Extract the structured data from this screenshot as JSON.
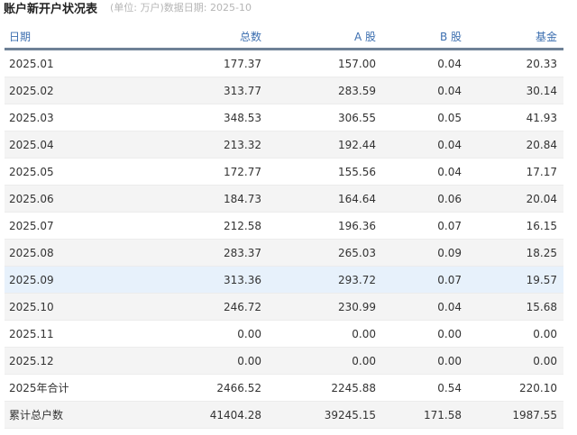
{
  "header": {
    "title": "账户新开户状况表",
    "subtitle": "(单位: 万户)数据日期:  2025-10"
  },
  "table": {
    "columns": [
      "日期",
      "总数",
      "A 股",
      "B 股",
      "基金"
    ],
    "rows": [
      [
        "2025.01",
        "177.37",
        "157.00",
        "0.04",
        "20.33"
      ],
      [
        "2025.02",
        "313.77",
        "283.59",
        "0.04",
        "30.14"
      ],
      [
        "2025.03",
        "348.53",
        "306.55",
        "0.05",
        "41.93"
      ],
      [
        "2025.04",
        "213.32",
        "192.44",
        "0.04",
        "20.84"
      ],
      [
        "2025.05",
        "172.77",
        "155.56",
        "0.04",
        "17.17"
      ],
      [
        "2025.06",
        "184.73",
        "164.64",
        "0.06",
        "20.04"
      ],
      [
        "2025.07",
        "212.58",
        "196.36",
        "0.07",
        "16.15"
      ],
      [
        "2025.08",
        "283.37",
        "265.03",
        "0.09",
        "18.25"
      ],
      [
        "2025.09",
        "313.36",
        "293.72",
        "0.07",
        "19.57"
      ],
      [
        "2025.10",
        "246.72",
        "230.99",
        "0.04",
        "15.68"
      ],
      [
        "2025.11",
        "0.00",
        "0.00",
        "0.00",
        "0.00"
      ],
      [
        "2025.12",
        "0.00",
        "0.00",
        "0.00",
        "0.00"
      ],
      [
        "2025年合计",
        "2466.52",
        "2245.88",
        "0.54",
        "220.10"
      ],
      [
        "累计总户数",
        "41404.28",
        "39245.15",
        "171.58",
        "1987.55"
      ]
    ],
    "highlighted_row": "2025.09",
    "colors": {
      "header_text": "#3d6fb0",
      "header_rule": "#6e8196",
      "stripe": "#f4f4f4",
      "highlight": "#e7f1fb"
    }
  }
}
